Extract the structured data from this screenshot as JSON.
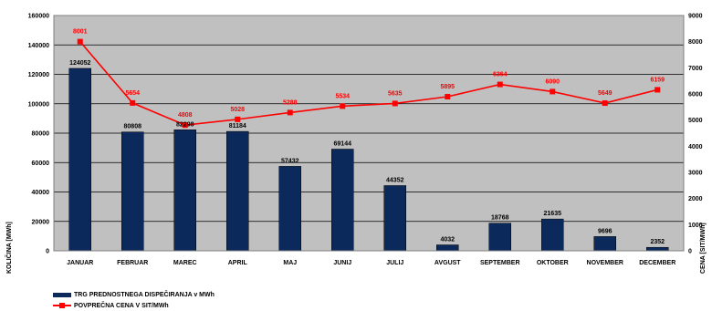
{
  "chart_data": {
    "type": "bar",
    "categories": [
      "JANUAR",
      "FEBRUAR",
      "MAREC",
      "APRIL",
      "MAJ",
      "JUNIJ",
      "JULIJ",
      "AVGUST",
      "SEPTEMBER",
      "OKTOBER",
      "NOVEMBER",
      "DECEMBER"
    ],
    "series": [
      {
        "name": "TRG PREDNOSTNEGA DISPEČIRANJA v MWh",
        "type": "bar",
        "axis": "left",
        "color": "#0b2a5b",
        "values": [
          124052,
          80808,
          82298,
          81184,
          57432,
          69144,
          44352,
          4032,
          18768,
          21635,
          9696,
          2352
        ]
      },
      {
        "name": "POVPREČNA CENA V SIT/MWh",
        "type": "line",
        "axis": "right",
        "color": "#ff0000",
        "values": [
          8001,
          5654,
          4808,
          5028,
          5288,
          5534,
          5635,
          5895,
          6364,
          6090,
          5649,
          6159
        ]
      }
    ],
    "ylabel": "KOLIČINA [MWh]",
    "ylabel_right": "CENA [SIT/MWh]",
    "ylim": [
      0,
      160000
    ],
    "ylim_right": [
      0,
      9000
    ],
    "yticks": [
      0,
      20000,
      40000,
      60000,
      80000,
      100000,
      120000,
      140000,
      160000
    ],
    "yticks_right": [
      0,
      1000,
      2000,
      3000,
      4000,
      5000,
      6000,
      7000,
      8000,
      9000
    ],
    "grid": true,
    "plot_background": "#c0c0c0",
    "legend_position": "bottom-left"
  }
}
